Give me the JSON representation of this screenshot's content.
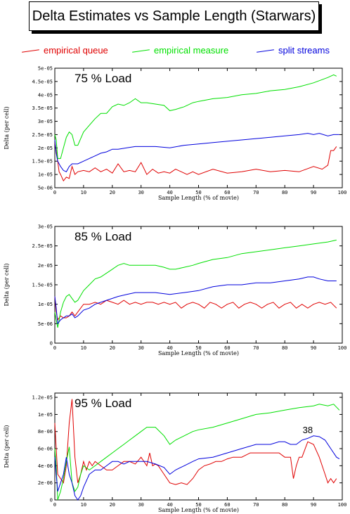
{
  "title": "Delta Estimates vs Sample Length (Starwars)",
  "colors": {
    "empirical_queue": "#e00000",
    "empirical_measure": "#00e000",
    "split_streams": "#0000dd"
  },
  "legend": [
    {
      "label": "empirical queue",
      "color": "#e00000"
    },
    {
      "label": "empirical measure",
      "color": "#00e000"
    },
    {
      "label": "split streams",
      "color": "#0000dd"
    }
  ],
  "chart_data": [
    {
      "type": "line",
      "title": "75 % Load",
      "xlabel": "Sample Length (% of movie)",
      "ylabel": "Delta (per cell)",
      "xlim": [
        0,
        100
      ],
      "ylim": [
        5e-06,
        5e-05
      ],
      "xticks": [
        "0",
        "10",
        "20",
        "30",
        "40",
        "50",
        "60",
        "70",
        "80",
        "90",
        "100"
      ],
      "yticks": [
        {
          "v": 5e-06,
          "label": "5e-06"
        },
        {
          "v": 1e-05,
          "label": "1e-05"
        },
        {
          "v": 1.5e-05,
          "label": "1.5e-05"
        },
        {
          "v": 2e-05,
          "label": "2e-05"
        },
        {
          "v": 2.5e-05,
          "label": "2.5e-05"
        },
        {
          "v": 3e-05,
          "label": "3e-05"
        },
        {
          "v": 3.5e-05,
          "label": "3.5e-05"
        },
        {
          "v": 4e-05,
          "label": "4e-05"
        },
        {
          "v": 4.5e-05,
          "label": "4.5e-05"
        },
        {
          "v": 5e-05,
          "label": "5e-05"
        }
      ],
      "series": [
        {
          "name": "empirical queue",
          "color": "#e00000",
          "x": [
            0,
            0.5,
            1,
            1.5,
            2,
            3,
            4,
            5,
            6,
            7,
            8,
            10,
            12,
            14,
            16,
            18,
            20,
            22,
            24,
            26,
            28,
            30,
            32,
            34,
            36,
            38,
            40,
            42,
            44,
            46,
            48,
            50,
            55,
            60,
            65,
            70,
            75,
            80,
            85,
            90,
            93,
            95,
            96,
            97,
            98
          ],
          "y": [
            2.2e-05,
            1.9e-05,
            1.5e-05,
            1.1e-05,
            1e-05,
            7.6e-06,
            9e-06,
            8.5e-06,
            1.3e-05,
            1e-05,
            1.1e-05,
            1.15e-05,
            1.1e-05,
            1.25e-05,
            1.1e-05,
            1.2e-05,
            1.05e-05,
            1.4e-05,
            1.1e-05,
            1.15e-05,
            1.1e-05,
            1.45e-05,
            1e-05,
            1.2e-05,
            1.05e-05,
            1.1e-05,
            1.05e-05,
            1.2e-05,
            1.1e-05,
            1e-05,
            1.1e-05,
            1e-05,
            1.2e-05,
            1.05e-05,
            1.1e-05,
            1.2e-05,
            1.1e-05,
            1.15e-05,
            1.1e-05,
            1.3e-05,
            1.2e-05,
            1.35e-05,
            1.9e-05,
            1.9e-05,
            2.05e-05
          ]
        },
        {
          "name": "empirical measure",
          "color": "#00e000",
          "x": [
            0,
            0.5,
            1,
            2,
            3,
            4,
            5,
            6,
            7,
            8,
            10,
            12,
            14,
            16,
            18,
            20,
            22,
            24,
            26,
            28,
            30,
            32,
            35,
            38,
            40,
            42,
            45,
            48,
            50,
            55,
            60,
            65,
            70,
            75,
            80,
            85,
            90,
            95,
            97,
            98
          ],
          "y": [
            2.5e-05,
            2.3e-05,
            1.6e-05,
            1.6e-05,
            2e-05,
            2.4e-05,
            2.6e-05,
            2.5e-05,
            2.1e-05,
            2.1e-05,
            2.6e-05,
            2.85e-05,
            3.1e-05,
            3.3e-05,
            3.3e-05,
            3.55e-05,
            3.65e-05,
            3.6e-05,
            3.7e-05,
            3.85e-05,
            3.7e-05,
            3.7e-05,
            3.65e-05,
            3.6e-05,
            3.4e-05,
            3.45e-05,
            3.55e-05,
            3.7e-05,
            3.75e-05,
            3.85e-05,
            3.9e-05,
            4e-05,
            4.05e-05,
            4.15e-05,
            4.2e-05,
            4.3e-05,
            4.45e-05,
            4.65e-05,
            4.75e-05,
            4.7e-05
          ]
        },
        {
          "name": "split streams",
          "color": "#0000dd",
          "x": [
            0,
            0.5,
            1,
            2,
            3,
            4,
            5,
            6,
            8,
            10,
            12,
            14,
            16,
            18,
            20,
            22,
            25,
            28,
            30,
            35,
            40,
            45,
            50,
            55,
            60,
            65,
            70,
            75,
            80,
            85,
            88,
            90,
            92,
            95,
            97,
            99
          ],
          "y": [
            2.3e-05,
            1.8e-05,
            1.5e-05,
            1.3e-05,
            1.15e-05,
            1.1e-05,
            1.3e-05,
            1.4e-05,
            1.4e-05,
            1.5e-05,
            1.6e-05,
            1.7e-05,
            1.8e-05,
            1.85e-05,
            1.95e-05,
            1.95e-05,
            2e-05,
            2.05e-05,
            2.05e-05,
            2.05e-05,
            2e-05,
            2.1e-05,
            2.15e-05,
            2.2e-05,
            2.25e-05,
            2.3e-05,
            2.35e-05,
            2.4e-05,
            2.45e-05,
            2.5e-05,
            2.55e-05,
            2.5e-05,
            2.55e-05,
            2.45e-05,
            2.5e-05,
            2.5e-05
          ]
        }
      ]
    },
    {
      "type": "line",
      "title": "85 % Load",
      "xlabel": "Sample Length (% of movie)",
      "ylabel": "Delta (per cell)",
      "xlim": [
        0,
        100
      ],
      "ylim": [
        0,
        3e-05
      ],
      "xticks": [
        "0",
        "10",
        "20",
        "30",
        "40",
        "50",
        "60",
        "70",
        "80",
        "90",
        "100"
      ],
      "yticks": [
        {
          "v": 0,
          "label": "0"
        },
        {
          "v": 5e-06,
          "label": "5e-06"
        },
        {
          "v": 1e-05,
          "label": "1e-05"
        },
        {
          "v": 1.5e-05,
          "label": "1.5e-05"
        },
        {
          "v": 2e-05,
          "label": "2e-05"
        },
        {
          "v": 2.5e-05,
          "label": "2.5e-05"
        },
        {
          "v": 3e-05,
          "label": "3e-05"
        }
      ],
      "series": [
        {
          "name": "empirical queue",
          "color": "#e00000",
          "x": [
            0,
            0.5,
            1,
            2,
            3,
            4,
            5,
            6,
            7,
            8,
            10,
            12,
            14,
            16,
            18,
            20,
            22,
            24,
            26,
            28,
            30,
            32,
            34,
            36,
            38,
            40,
            42,
            44,
            46,
            48,
            50,
            52,
            54,
            56,
            58,
            60,
            62,
            64,
            66,
            68,
            70,
            72,
            74,
            76,
            78,
            80,
            82,
            84,
            86,
            88,
            90,
            92,
            94,
            96,
            98
          ],
          "y": [
            1.2e-05,
            8e-06,
            6e-06,
            7e-06,
            6.5e-06,
            6.5e-06,
            7e-06,
            8e-06,
            7e-06,
            8e-06,
            1e-05,
            1e-05,
            1.05e-05,
            1e-05,
            1.1e-05,
            1.05e-05,
            1e-05,
            1.1e-05,
            1e-05,
            1.05e-05,
            1e-05,
            1.05e-05,
            1.05e-05,
            1e-05,
            1.05e-05,
            1e-05,
            1.05e-05,
            9e-06,
            1e-05,
            1.05e-05,
            1e-05,
            9e-06,
            1.05e-05,
            1e-05,
            9e-06,
            1e-05,
            1.05e-05,
            9e-06,
            1e-05,
            1.05e-05,
            1e-05,
            9e-06,
            1e-05,
            1.05e-05,
            9e-06,
            1e-05,
            1.05e-05,
            9e-06,
            1e-05,
            9e-06,
            1e-05,
            1.05e-05,
            1e-05,
            1.05e-05,
            9e-06
          ]
        },
        {
          "name": "empirical measure",
          "color": "#00e000",
          "x": [
            0,
            0.5,
            1,
            2,
            3,
            4,
            5,
            6,
            7,
            8,
            10,
            12,
            14,
            16,
            18,
            20,
            22,
            24,
            26,
            28,
            30,
            32,
            35,
            38,
            40,
            42,
            45,
            48,
            50,
            55,
            60,
            65,
            70,
            75,
            80,
            85,
            90,
            95,
            98
          ],
          "y": [
            8e-06,
            6e-06,
            4e-06,
            8e-06,
            1.05e-05,
            1.2e-05,
            1.25e-05,
            1.15e-05,
            1.05e-05,
            1.1e-05,
            1.35e-05,
            1.5e-05,
            1.65e-05,
            1.7e-05,
            1.8e-05,
            1.9e-05,
            2e-05,
            2.05e-05,
            2e-05,
            2e-05,
            2e-05,
            2e-05,
            2e-05,
            1.95e-05,
            1.9e-05,
            1.9e-05,
            1.95e-05,
            2e-05,
            2.05e-05,
            2.15e-05,
            2.2e-05,
            2.3e-05,
            2.35e-05,
            2.4e-05,
            2.45e-05,
            2.5e-05,
            2.55e-05,
            2.6e-05,
            2.65e-05
          ]
        },
        {
          "name": "split streams",
          "color": "#0000dd",
          "x": [
            0,
            0.5,
            1,
            2,
            3,
            4,
            5,
            6,
            7,
            8,
            10,
            12,
            14,
            16,
            18,
            20,
            22,
            25,
            28,
            30,
            35,
            40,
            45,
            50,
            55,
            60,
            65,
            70,
            75,
            80,
            85,
            88,
            90,
            92,
            95,
            98
          ],
          "y": [
            1.2e-05,
            9e-06,
            5e-06,
            6e-06,
            6.5e-06,
            7e-06,
            7e-06,
            7.5e-06,
            6.5e-06,
            7e-06,
            8.5e-06,
            9e-06,
            1e-05,
            1.05e-05,
            1.1e-05,
            1.15e-05,
            1.2e-05,
            1.25e-05,
            1.3e-05,
            1.3e-05,
            1.3e-05,
            1.25e-05,
            1.3e-05,
            1.35e-05,
            1.45e-05,
            1.5e-05,
            1.5e-05,
            1.55e-05,
            1.55e-05,
            1.6e-05,
            1.65e-05,
            1.7e-05,
            1.7e-05,
            1.65e-05,
            1.6e-05,
            1.6e-05
          ]
        }
      ]
    },
    {
      "type": "line",
      "title": "95 % Load",
      "xlabel": "Sample Length (% of movie)",
      "ylabel": "Delta (per cell)",
      "xlim": [
        0,
        100
      ],
      "ylim": [
        0,
        1.25e-05
      ],
      "xticks": [
        "0",
        "10",
        "20",
        "30",
        "40",
        "50",
        "60",
        "70",
        "80",
        "90",
        "100"
      ],
      "yticks": [
        {
          "v": 0,
          "label": "0"
        },
        {
          "v": 2e-06,
          "label": "2e-06"
        },
        {
          "v": 4e-06,
          "label": "4e-06"
        },
        {
          "v": 6e-06,
          "label": "6e-06"
        },
        {
          "v": 8e-06,
          "label": "8e-06"
        },
        {
          "v": 1e-05,
          "label": "1e-05"
        },
        {
          "v": 1.2e-05,
          "label": "1.2e-05"
        }
      ],
      "annotations": [
        {
          "text": "38",
          "x": 88,
          "y": 7.8e-06
        }
      ],
      "series": [
        {
          "name": "empirical queue",
          "color": "#e00000",
          "x": [
            0,
            0.5,
            1,
            2,
            3,
            4,
            5,
            6,
            7,
            8,
            9,
            10,
            11,
            12,
            13,
            14,
            16,
            18,
            20,
            22,
            24,
            26,
            28,
            30,
            32,
            33,
            34,
            35,
            36,
            38,
            40,
            42,
            44,
            46,
            48,
            50,
            52,
            54,
            56,
            58,
            60,
            62,
            65,
            68,
            70,
            72,
            75,
            78,
            80,
            82,
            83,
            84,
            85,
            86,
            88,
            90,
            92,
            94,
            95,
            96,
            97,
            98
          ],
          "y": [
            9e-06,
            6e-06,
            3e-06,
            2.5e-06,
            2e-06,
            4e-06,
            9e-06,
            1.18e-05,
            5e-06,
            2e-06,
            3e-06,
            4.5e-06,
            3.5e-06,
            4.5e-06,
            4e-06,
            4.5e-06,
            4e-06,
            3.5e-06,
            3.5e-06,
            4e-06,
            4.5e-06,
            4.5e-06,
            4.2e-06,
            5e-06,
            4e-06,
            5.5e-06,
            4e-06,
            4.2e-06,
            4e-06,
            3e-06,
            2e-06,
            1.8e-06,
            2e-06,
            1.8e-06,
            2.5e-06,
            3.5e-06,
            4e-06,
            4.2e-06,
            4.5e-06,
            4.5e-06,
            4.8e-06,
            5e-06,
            5e-06,
            5.5e-06,
            5.5e-06,
            5.5e-06,
            5.5e-06,
            5.5e-06,
            5e-06,
            5e-06,
            2.5e-06,
            4e-06,
            5e-06,
            5e-06,
            6.8e-06,
            6.5e-06,
            5e-06,
            3e-06,
            2e-06,
            2.5e-06,
            2e-06,
            2.5e-06
          ]
        },
        {
          "name": "empirical measure",
          "color": "#00e000",
          "x": [
            0,
            0.5,
            1,
            2,
            3,
            4,
            5,
            6,
            7,
            8,
            9,
            10,
            12,
            14,
            16,
            18,
            20,
            22,
            24,
            26,
            28,
            30,
            32,
            35,
            38,
            40,
            42,
            45,
            48,
            50,
            55,
            60,
            65,
            70,
            75,
            80,
            85,
            90,
            92,
            95,
            97,
            99
          ],
          "y": [
            6e-06,
            4e-06,
            0,
            1e-06,
            2.5e-06,
            4.5e-06,
            6.2e-06,
            2e-06,
            1e-06,
            1.5e-06,
            3e-06,
            4e-06,
            3.5e-06,
            4e-06,
            4.5e-06,
            5e-06,
            5.5e-06,
            6e-06,
            6.5e-06,
            7e-06,
            7.5e-06,
            8e-06,
            8.5e-06,
            8.5e-06,
            7.5e-06,
            6.5e-06,
            7e-06,
            7.5e-06,
            8e-06,
            8.2e-06,
            8.5e-06,
            9e-06,
            9.5e-06,
            1e-05,
            1.02e-05,
            1.05e-05,
            1.08e-05,
            1.1e-05,
            1.12e-05,
            1.1e-05,
            1.12e-05,
            1.05e-05
          ]
        },
        {
          "name": "split streams",
          "color": "#0000dd",
          "x": [
            0,
            0.5,
            1,
            2,
            3,
            4,
            5,
            6,
            7,
            8,
            9,
            10,
            12,
            14,
            16,
            18,
            20,
            22,
            24,
            26,
            28,
            30,
            32,
            35,
            38,
            40,
            42,
            45,
            48,
            50,
            55,
            60,
            65,
            70,
            72,
            75,
            78,
            80,
            82,
            84,
            86,
            88,
            90,
            92,
            94,
            96,
            98,
            99
          ],
          "y": [
            5e-06,
            3e-06,
            1e-06,
            2e-06,
            3e-06,
            5e-06,
            3e-06,
            2e-06,
            5e-07,
            0,
            5e-07,
            1.5e-06,
            3e-06,
            3.5e-06,
            3.5e-06,
            4e-06,
            4.5e-06,
            4.5e-06,
            4.2e-06,
            4.5e-06,
            4.5e-06,
            4.5e-06,
            4.5e-06,
            4.2e-06,
            3.8e-06,
            3e-06,
            3.5e-06,
            4e-06,
            4.5e-06,
            4.8e-06,
            5e-06,
            5.5e-06,
            6e-06,
            6.5e-06,
            6.5e-06,
            6.5e-06,
            6.8e-06,
            6.8e-06,
            6.5e-06,
            6.5e-06,
            7e-06,
            7.2e-06,
            7.5e-06,
            7.4e-06,
            7e-06,
            6e-06,
            5e-06,
            4.8e-06
          ]
        }
      ]
    }
  ]
}
